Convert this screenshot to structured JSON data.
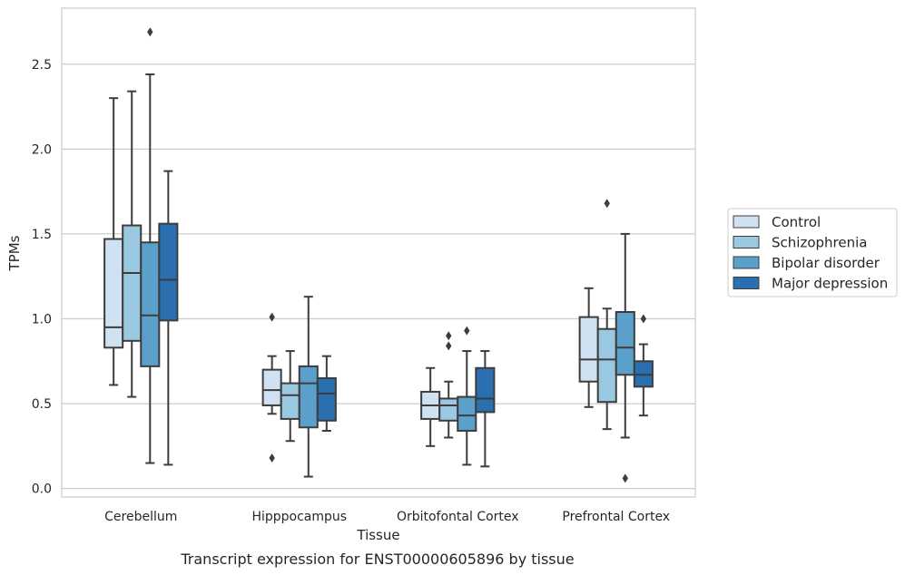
{
  "chart_data": {
    "type": "box",
    "caption": "Transcript expression for ENST00000605896 by tissue",
    "xlabel": "Tissue",
    "ylabel": "TPMs",
    "ylim": [
      -0.05,
      2.83
    ],
    "yticks": [
      "0.0",
      "0.5",
      "1.0",
      "1.5",
      "2.0",
      "2.5"
    ],
    "grid": "horizontal",
    "legend_position": "right",
    "categories": [
      "Cerebellum",
      "Hipppocampus",
      "Orbitofontal Cortex",
      "Prefrontal Cortex"
    ],
    "series": [
      {
        "name": "Control",
        "color": "#d0e1f2",
        "boxes": [
          {
            "whislo": 0.61,
            "q1": 0.83,
            "med": 0.95,
            "q3": 1.47,
            "whishi": 2.3,
            "fliers": []
          },
          {
            "whislo": 0.44,
            "q1": 0.49,
            "med": 0.58,
            "q3": 0.7,
            "whishi": 0.78,
            "fliers": [
              1.01,
              0.18
            ]
          },
          {
            "whislo": 0.25,
            "q1": 0.41,
            "med": 0.49,
            "q3": 0.57,
            "whishi": 0.71,
            "fliers": []
          },
          {
            "whislo": 0.48,
            "q1": 0.63,
            "med": 0.76,
            "q3": 1.01,
            "whishi": 1.18,
            "fliers": []
          }
        ]
      },
      {
        "name": "Schizophrenia",
        "color": "#9ac8e0",
        "boxes": [
          {
            "whislo": 0.54,
            "q1": 0.87,
            "med": 1.27,
            "q3": 1.55,
            "whishi": 2.34,
            "fliers": []
          },
          {
            "whislo": 0.28,
            "q1": 0.41,
            "med": 0.55,
            "q3": 0.62,
            "whishi": 0.81,
            "fliers": []
          },
          {
            "whislo": 0.3,
            "q1": 0.4,
            "med": 0.49,
            "q3": 0.53,
            "whishi": 0.63,
            "fliers": [
              0.9,
              0.84
            ]
          },
          {
            "whislo": 0.35,
            "q1": 0.51,
            "med": 0.76,
            "q3": 0.94,
            "whishi": 1.06,
            "fliers": [
              1.68
            ]
          }
        ]
      },
      {
        "name": "Bipolar disorder",
        "color": "#5b9fcb",
        "boxes": [
          {
            "whislo": 0.15,
            "q1": 0.72,
            "med": 1.02,
            "q3": 1.45,
            "whishi": 2.44,
            "fliers": [
              2.69
            ]
          },
          {
            "whislo": 0.07,
            "q1": 0.36,
            "med": 0.62,
            "q3": 0.72,
            "whishi": 1.13,
            "fliers": []
          },
          {
            "whislo": 0.14,
            "q1": 0.34,
            "med": 0.43,
            "q3": 0.54,
            "whishi": 0.81,
            "fliers": [
              0.93
            ]
          },
          {
            "whislo": 0.3,
            "q1": 0.67,
            "med": 0.83,
            "q3": 1.04,
            "whishi": 1.5,
            "fliers": [
              0.06
            ]
          }
        ]
      },
      {
        "name": "Major depression",
        "color": "#2a6fb0",
        "boxes": [
          {
            "whislo": 0.14,
            "q1": 0.99,
            "med": 1.23,
            "q3": 1.56,
            "whishi": 1.87,
            "fliers": []
          },
          {
            "whislo": 0.34,
            "q1": 0.4,
            "med": 0.56,
            "q3": 0.65,
            "whishi": 0.78,
            "fliers": []
          },
          {
            "whislo": 0.13,
            "q1": 0.45,
            "med": 0.53,
            "q3": 0.71,
            "whishi": 0.81,
            "fliers": []
          },
          {
            "whislo": 0.43,
            "q1": 0.6,
            "med": 0.67,
            "q3": 0.75,
            "whishi": 0.85,
            "fliers": [
              1.0
            ]
          }
        ]
      }
    ]
  }
}
